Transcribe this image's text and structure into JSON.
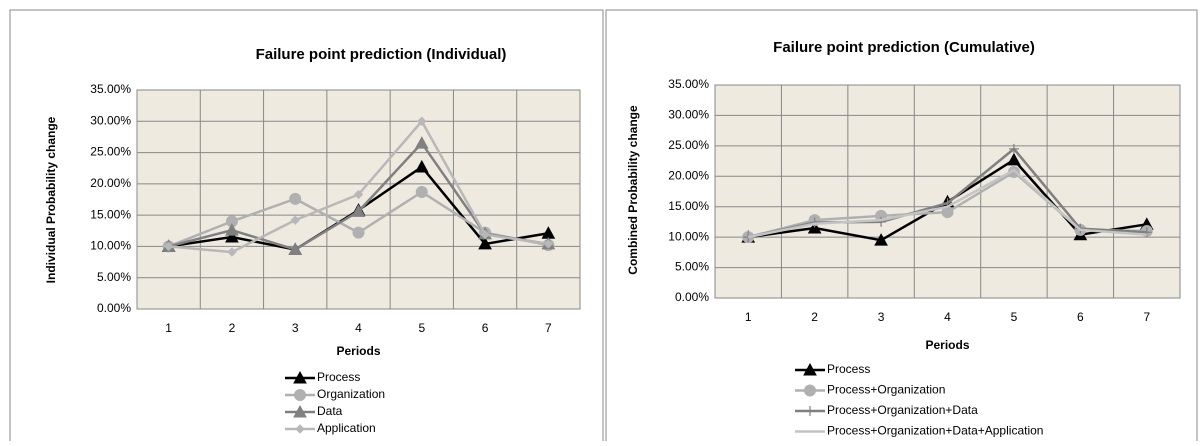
{
  "chart_data": [
    {
      "type": "line",
      "title": "Failure point prediction (Individual)",
      "x_label": "Periods",
      "y_label": "Individual Probability change",
      "categories": [
        "1",
        "2",
        "3",
        "4",
        "5",
        "6",
        "7"
      ],
      "ylim": [
        0,
        35
      ],
      "yticks": [
        {
          "value": 0,
          "label": "0.00%"
        },
        {
          "value": 5,
          "label": "5.00%"
        },
        {
          "value": 10,
          "label": "10.00%"
        },
        {
          "value": 15,
          "label": "15.00%"
        },
        {
          "value": 20,
          "label": "20.00%"
        },
        {
          "value": 25,
          "label": "25.00%"
        },
        {
          "value": 30,
          "label": "30.00%"
        },
        {
          "value": 35,
          "label": "35.00%"
        }
      ],
      "grid": true,
      "series": [
        {
          "name": "Process",
          "color": "#000000",
          "marker": "triangle",
          "values": [
            10.0,
            11.5,
            9.5,
            15.8,
            22.7,
            10.4,
            12.1
          ]
        },
        {
          "name": "Organization",
          "color": "#b0b0b0",
          "marker": "circle",
          "values": [
            10.0,
            14.0,
            17.6,
            12.2,
            18.7,
            12.2,
            10.2
          ]
        },
        {
          "name": "Data",
          "color": "#808080",
          "marker": "triangle",
          "values": [
            10.0,
            12.6,
            9.5,
            15.6,
            26.5,
            12.0,
            10.4
          ]
        },
        {
          "name": "Application",
          "color": "#b8b8b8",
          "marker": "diamond",
          "values": [
            10.0,
            9.1,
            14.2,
            18.3,
            30.0,
            11.9,
            10.4
          ]
        }
      ]
    },
    {
      "type": "line",
      "title": "Failure point prediction (Cumulative)",
      "x_label": "Periods",
      "y_label": "Combined Probability change",
      "categories": [
        "1",
        "2",
        "3",
        "4",
        "5",
        "6",
        "7"
      ],
      "ylim": [
        0,
        35
      ],
      "yticks": [
        {
          "value": 0,
          "label": "0.00%"
        },
        {
          "value": 5,
          "label": "5.00%"
        },
        {
          "value": 10,
          "label": "10.00%"
        },
        {
          "value": 15,
          "label": "15.00%"
        },
        {
          "value": 20,
          "label": "20.00%"
        },
        {
          "value": 25,
          "label": "25.00%"
        },
        {
          "value": 30,
          "label": "30.00%"
        },
        {
          "value": 35,
          "label": "35.00%"
        }
      ],
      "grid": true,
      "series": [
        {
          "name": "Process",
          "color": "#000000",
          "marker": "triangle",
          "values": [
            10.0,
            11.5,
            9.5,
            15.8,
            22.7,
            10.4,
            12.1
          ]
        },
        {
          "name": "Process+Organization",
          "color": "#b0b0b0",
          "marker": "circle",
          "values": [
            10.0,
            12.8,
            13.5,
            14.1,
            20.7,
            11.2,
            11.0
          ]
        },
        {
          "name": "Process+Organization+Data",
          "color": "#808080",
          "marker": "plus",
          "values": [
            10.0,
            12.4,
            12.5,
            15.6,
            24.5,
            11.4,
            10.8
          ]
        },
        {
          "name": "Process+Organization+Data+Application",
          "color": "#c4c4c4",
          "marker": "none",
          "values": [
            10.0,
            12.2,
            12.8,
            15.0,
            21.0,
            11.2,
            10.4
          ]
        }
      ]
    }
  ]
}
